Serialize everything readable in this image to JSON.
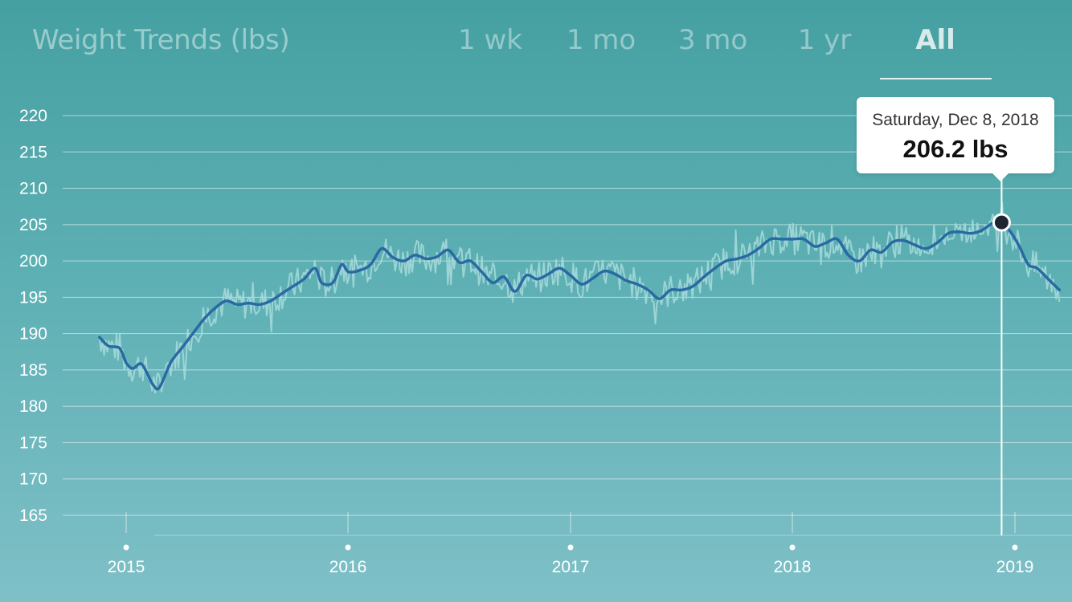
{
  "header": {
    "title": "Weight Trends (lbs)",
    "tabs": [
      {
        "label": "1 wk",
        "active": false
      },
      {
        "label": "1 mo",
        "active": false
      },
      {
        "label": "3 mo",
        "active": false
      },
      {
        "label": "1 yr",
        "active": false
      },
      {
        "label": "All",
        "active": true
      }
    ]
  },
  "tooltip": {
    "date": "Saturday, Dec 8, 2018",
    "value": "206.2 lbs"
  },
  "colors": {
    "background_top": "#45a0a1",
    "background_bottom": "#7fc0c7",
    "trend_line": "#2a6aa3",
    "raw_line": "#a8dbdb",
    "marker": "#1d2533"
  },
  "chart_data": {
    "type": "line",
    "title": "Weight Trends (lbs)",
    "xlabel": "",
    "ylabel": "",
    "ylim": [
      165,
      220
    ],
    "yticks": [
      "165",
      "170",
      "175",
      "180",
      "185",
      "190",
      "195",
      "200",
      "205",
      "210",
      "215",
      "220"
    ],
    "xticks": [
      "2015",
      "2016",
      "2017",
      "2018",
      "2019"
    ],
    "xlim": [
      2014.85,
      2019.22
    ],
    "grid": true,
    "selected_point": {
      "x": 2018.94,
      "y": 205.3
    },
    "series": [
      {
        "kind": "trend",
        "x": [
          2014.88,
          2014.92,
          2014.97,
          2015.0,
          2015.03,
          2015.07,
          2015.12,
          2015.15,
          2015.2,
          2015.25,
          2015.3,
          2015.35,
          2015.4,
          2015.45,
          2015.5,
          2015.55,
          2015.6,
          2015.65,
          2015.7,
          2015.75,
          2015.8,
          2015.85,
          2015.88,
          2015.93,
          2015.97,
          2016.0,
          2016.05,
          2016.1,
          2016.15,
          2016.2,
          2016.25,
          2016.3,
          2016.35,
          2016.4,
          2016.45,
          2016.5,
          2016.55,
          2016.6,
          2016.65,
          2016.7,
          2016.75,
          2016.8,
          2016.85,
          2016.9,
          2016.95,
          2017.0,
          2017.05,
          2017.1,
          2017.15,
          2017.2,
          2017.25,
          2017.3,
          2017.35,
          2017.4,
          2017.45,
          2017.5,
          2017.55,
          2017.6,
          2017.65,
          2017.7,
          2017.75,
          2017.8,
          2017.85,
          2017.9,
          2017.95,
          2018.0,
          2018.05,
          2018.1,
          2018.15,
          2018.2,
          2018.25,
          2018.3,
          2018.35,
          2018.4,
          2018.45,
          2018.5,
          2018.55,
          2018.6,
          2018.65,
          2018.7,
          2018.75,
          2018.8,
          2018.85,
          2018.9,
          2018.94,
          2018.98,
          2019.02,
          2019.06,
          2019.1,
          2019.15,
          2019.2
        ],
        "y": [
          189.5,
          188.3,
          188.0,
          186.0,
          185.2,
          185.8,
          183.0,
          182.6,
          186.0,
          188.0,
          190.0,
          192.0,
          193.5,
          194.5,
          194.0,
          194.2,
          194.0,
          194.5,
          195.5,
          196.5,
          197.5,
          199.0,
          197.0,
          197.0,
          199.5,
          198.5,
          198.7,
          199.5,
          201.7,
          200.5,
          200.0,
          200.8,
          200.3,
          200.6,
          201.5,
          199.8,
          200.0,
          198.5,
          197.0,
          197.8,
          195.8,
          198.0,
          197.5,
          198.2,
          199.0,
          198.0,
          196.8,
          197.6,
          198.6,
          198.2,
          197.3,
          196.8,
          196.0,
          194.8,
          196.0,
          196.0,
          196.5,
          197.8,
          199.0,
          200.0,
          200.3,
          200.8,
          201.8,
          203.0,
          203.0,
          203.0,
          203.0,
          202.0,
          202.5,
          203.0,
          200.8,
          200.0,
          201.5,
          201.2,
          202.6,
          202.8,
          202.2,
          201.7,
          202.5,
          203.8,
          204.0,
          203.8,
          204.2,
          205.2,
          205.3,
          204.0,
          202.0,
          199.5,
          199.0,
          197.5,
          196.0
        ]
      }
    ]
  }
}
